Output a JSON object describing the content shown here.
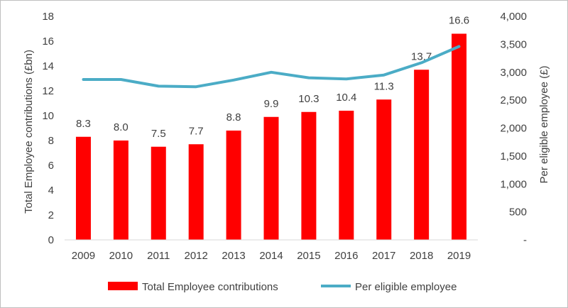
{
  "chart_data": {
    "type": "bar",
    "categories": [
      "2009",
      "2010",
      "2011",
      "2012",
      "2013",
      "2014",
      "2015",
      "2016",
      "2017",
      "2018",
      "2019"
    ],
    "series": [
      {
        "name": "Total Employee contributions",
        "type": "bar",
        "axis": "left",
        "color": "#ff0000",
        "values": [
          8.3,
          8.0,
          7.5,
          7.7,
          8.8,
          9.9,
          10.3,
          10.4,
          11.3,
          13.7,
          16.6
        ],
        "labels": [
          "8.3",
          "8.0",
          "7.5",
          "7.7",
          "8.8",
          "9.9",
          "10.3",
          "10.4",
          "11.3",
          "13.7",
          "16.6"
        ]
      },
      {
        "name": "Per eligible employee",
        "type": "line",
        "axis": "right",
        "color": "#4bacc6",
        "values": [
          2870,
          2870,
          2750,
          2740,
          2860,
          3000,
          2900,
          2880,
          2950,
          3170,
          3460
        ]
      }
    ],
    "ylabel": "Total Employee contributions (£bn)",
    "y2label": "Per eligible employee  (£)",
    "ylim": [
      0,
      18
    ],
    "y2lim": [
      0,
      4000
    ],
    "yticks": [
      "0",
      "2",
      "4",
      "6",
      "8",
      "10",
      "12",
      "14",
      "16",
      "18"
    ],
    "y2ticks": [
      "-",
      "500",
      "1,000",
      "1,500",
      "2,000",
      "2,500",
      "3,000",
      "3,500",
      "4,000"
    ],
    "legend_position": "bottom",
    "grid": false
  }
}
